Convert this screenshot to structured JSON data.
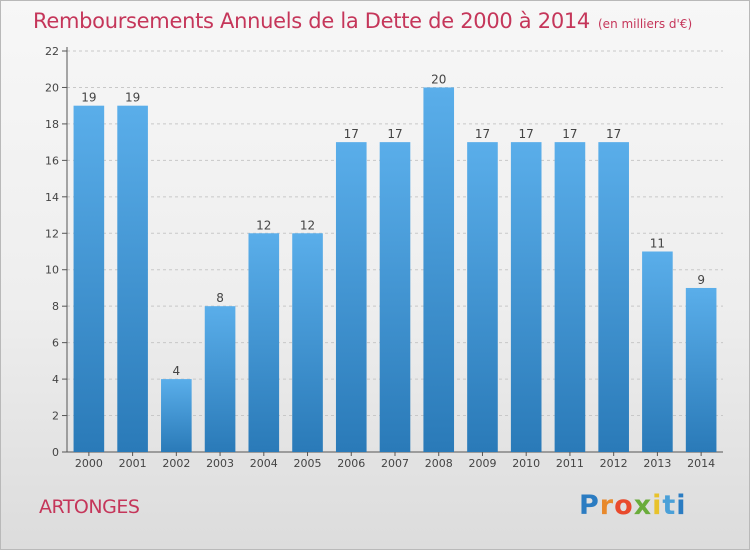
{
  "header": {
    "title": "Remboursements Annuels de la Dette de 2000 à 2014",
    "subtitle": "(en milliers d'€)"
  },
  "footer": {
    "town": "ARTONGES",
    "brand": "Proxiti"
  },
  "colors": {
    "title": "#c5365a",
    "bar_light": "#5aaeea",
    "bar_dark": "#2a7ab8"
  },
  "chart_data": {
    "type": "bar",
    "title": "Remboursements Annuels de la Dette de 2000 à 2014",
    "xlabel": "",
    "ylabel": "",
    "ylim": [
      0,
      22
    ],
    "y_ticks": [
      0,
      2,
      4,
      6,
      8,
      10,
      12,
      14,
      16,
      18,
      20,
      22
    ],
    "grid": true,
    "categories": [
      "2000",
      "2001",
      "2002",
      "2003",
      "2004",
      "2005",
      "2006",
      "2007",
      "2008",
      "2009",
      "2010",
      "2011",
      "2012",
      "2013",
      "2014"
    ],
    "values": [
      19,
      19,
      4,
      8,
      12,
      12,
      17,
      17,
      20,
      17,
      17,
      17,
      17,
      11,
      9
    ]
  }
}
